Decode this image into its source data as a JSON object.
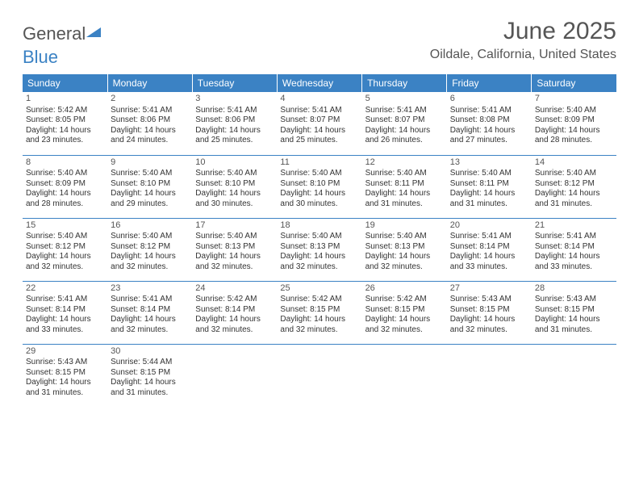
{
  "brand": {
    "general": "General",
    "blue": "Blue"
  },
  "title": "June 2025",
  "location": "Oildale, California, United States",
  "weekdays": [
    "Sunday",
    "Monday",
    "Tuesday",
    "Wednesday",
    "Thursday",
    "Friday",
    "Saturday"
  ],
  "colors": {
    "header_bg": "#3b82c4",
    "header_text": "#ffffff",
    "rule": "#3b82c4",
    "body_text": "#333333",
    "title_text": "#555555"
  },
  "typography": {
    "title_pt": 30,
    "location_pt": 16,
    "weekday_pt": 12,
    "daynum_pt": 11,
    "body_pt": 10
  },
  "weeks": [
    [
      {
        "n": "1",
        "sr": "5:42 AM",
        "ss": "8:05 PM",
        "dl": "14 hours and 23 minutes."
      },
      {
        "n": "2",
        "sr": "5:41 AM",
        "ss": "8:06 PM",
        "dl": "14 hours and 24 minutes."
      },
      {
        "n": "3",
        "sr": "5:41 AM",
        "ss": "8:06 PM",
        "dl": "14 hours and 25 minutes."
      },
      {
        "n": "4",
        "sr": "5:41 AM",
        "ss": "8:07 PM",
        "dl": "14 hours and 25 minutes."
      },
      {
        "n": "5",
        "sr": "5:41 AM",
        "ss": "8:07 PM",
        "dl": "14 hours and 26 minutes."
      },
      {
        "n": "6",
        "sr": "5:41 AM",
        "ss": "8:08 PM",
        "dl": "14 hours and 27 minutes."
      },
      {
        "n": "7",
        "sr": "5:40 AM",
        "ss": "8:09 PM",
        "dl": "14 hours and 28 minutes."
      }
    ],
    [
      {
        "n": "8",
        "sr": "5:40 AM",
        "ss": "8:09 PM",
        "dl": "14 hours and 28 minutes."
      },
      {
        "n": "9",
        "sr": "5:40 AM",
        "ss": "8:10 PM",
        "dl": "14 hours and 29 minutes."
      },
      {
        "n": "10",
        "sr": "5:40 AM",
        "ss": "8:10 PM",
        "dl": "14 hours and 30 minutes."
      },
      {
        "n": "11",
        "sr": "5:40 AM",
        "ss": "8:10 PM",
        "dl": "14 hours and 30 minutes."
      },
      {
        "n": "12",
        "sr": "5:40 AM",
        "ss": "8:11 PM",
        "dl": "14 hours and 31 minutes."
      },
      {
        "n": "13",
        "sr": "5:40 AM",
        "ss": "8:11 PM",
        "dl": "14 hours and 31 minutes."
      },
      {
        "n": "14",
        "sr": "5:40 AM",
        "ss": "8:12 PM",
        "dl": "14 hours and 31 minutes."
      }
    ],
    [
      {
        "n": "15",
        "sr": "5:40 AM",
        "ss": "8:12 PM",
        "dl": "14 hours and 32 minutes."
      },
      {
        "n": "16",
        "sr": "5:40 AM",
        "ss": "8:12 PM",
        "dl": "14 hours and 32 minutes."
      },
      {
        "n": "17",
        "sr": "5:40 AM",
        "ss": "8:13 PM",
        "dl": "14 hours and 32 minutes."
      },
      {
        "n": "18",
        "sr": "5:40 AM",
        "ss": "8:13 PM",
        "dl": "14 hours and 32 minutes."
      },
      {
        "n": "19",
        "sr": "5:40 AM",
        "ss": "8:13 PM",
        "dl": "14 hours and 32 minutes."
      },
      {
        "n": "20",
        "sr": "5:41 AM",
        "ss": "8:14 PM",
        "dl": "14 hours and 33 minutes."
      },
      {
        "n": "21",
        "sr": "5:41 AM",
        "ss": "8:14 PM",
        "dl": "14 hours and 33 minutes."
      }
    ],
    [
      {
        "n": "22",
        "sr": "5:41 AM",
        "ss": "8:14 PM",
        "dl": "14 hours and 33 minutes."
      },
      {
        "n": "23",
        "sr": "5:41 AM",
        "ss": "8:14 PM",
        "dl": "14 hours and 32 minutes."
      },
      {
        "n": "24",
        "sr": "5:42 AM",
        "ss": "8:14 PM",
        "dl": "14 hours and 32 minutes."
      },
      {
        "n": "25",
        "sr": "5:42 AM",
        "ss": "8:15 PM",
        "dl": "14 hours and 32 minutes."
      },
      {
        "n": "26",
        "sr": "5:42 AM",
        "ss": "8:15 PM",
        "dl": "14 hours and 32 minutes."
      },
      {
        "n": "27",
        "sr": "5:43 AM",
        "ss": "8:15 PM",
        "dl": "14 hours and 32 minutes."
      },
      {
        "n": "28",
        "sr": "5:43 AM",
        "ss": "8:15 PM",
        "dl": "14 hours and 31 minutes."
      }
    ],
    [
      {
        "n": "29",
        "sr": "5:43 AM",
        "ss": "8:15 PM",
        "dl": "14 hours and 31 minutes."
      },
      {
        "n": "30",
        "sr": "5:44 AM",
        "ss": "8:15 PM",
        "dl": "14 hours and 31 minutes."
      },
      null,
      null,
      null,
      null,
      null
    ]
  ],
  "labels": {
    "sunrise": "Sunrise: ",
    "sunset": "Sunset: ",
    "daylight": "Daylight: "
  }
}
